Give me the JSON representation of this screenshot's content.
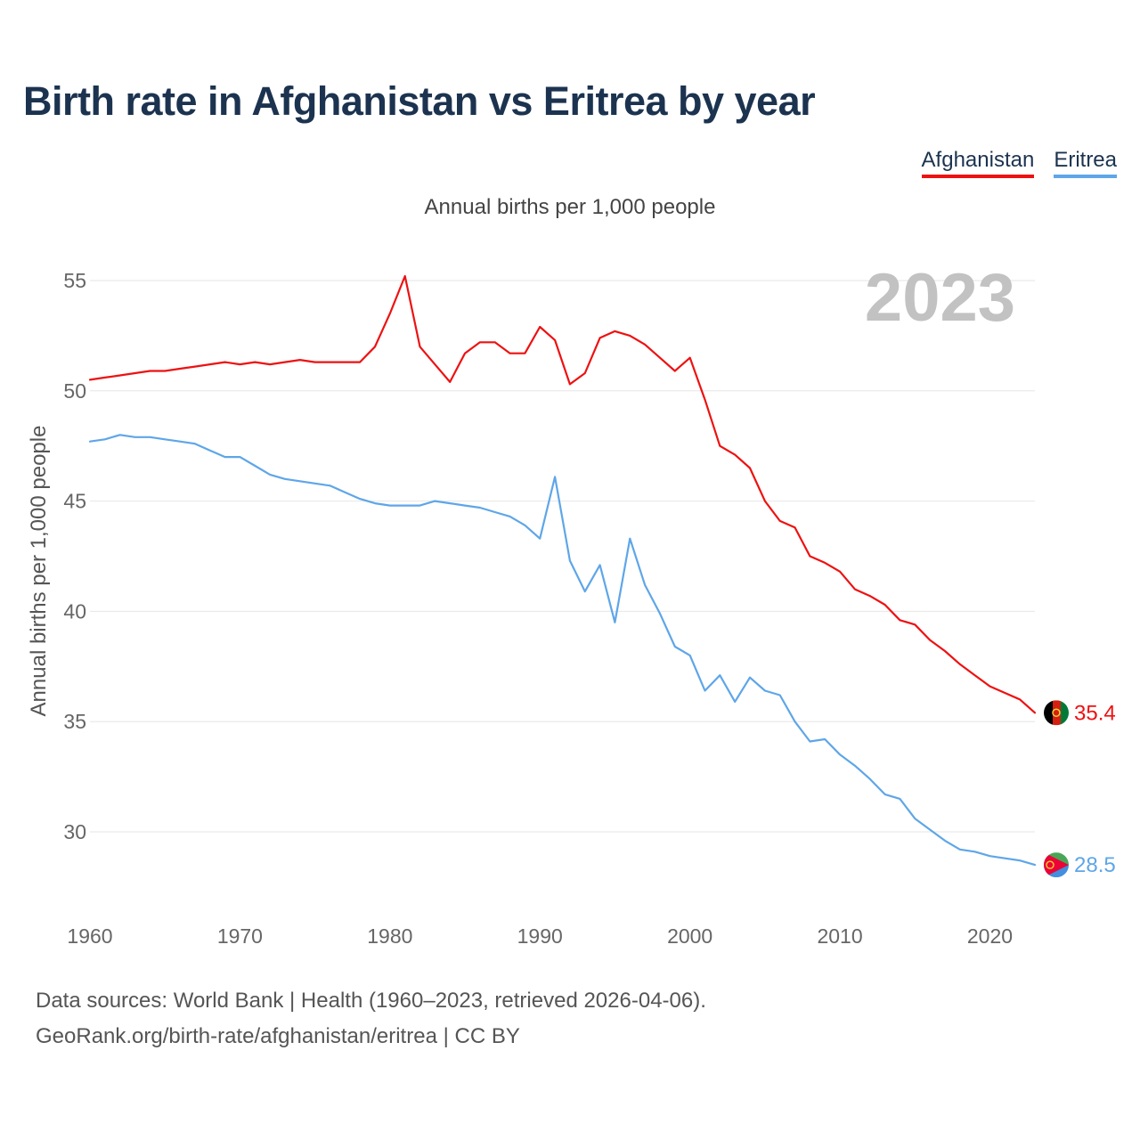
{
  "title": "Birth rate in Afghanistan vs Eritrea by year",
  "footer": {
    "line1": "Data sources: World Bank | Health (1960–2023, retrieved 2026-04-06).",
    "line2": "GeoRank.org/birth-rate/afghanistan/eritrea | CC BY"
  },
  "legend": [
    {
      "label": "Afghanistan",
      "color": "#ee1111"
    },
    {
      "label": "Eritrea",
      "color": "#5ea6e8"
    }
  ],
  "chart_data": {
    "type": "line",
    "title": "Birth rate in Afghanistan vs Eritrea by year",
    "subtitle": "Annual births per 1,000 people",
    "ylabel": "Annual births per 1,000 people",
    "xlabel": "",
    "year_label": "2023",
    "xlim": [
      1960,
      2023
    ],
    "ylim": [
      27,
      56
    ],
    "x_ticks": [
      1960,
      1970,
      1980,
      1990,
      2000,
      2010,
      2020
    ],
    "y_ticks": [
      30,
      35,
      40,
      45,
      50,
      55
    ],
    "grid": true,
    "x": [
      1960,
      1961,
      1962,
      1963,
      1964,
      1965,
      1966,
      1967,
      1968,
      1969,
      1970,
      1971,
      1972,
      1973,
      1974,
      1975,
      1976,
      1977,
      1978,
      1979,
      1980,
      1981,
      1982,
      1983,
      1984,
      1985,
      1986,
      1987,
      1988,
      1989,
      1990,
      1991,
      1992,
      1993,
      1994,
      1995,
      1996,
      1997,
      1998,
      1999,
      2000,
      2001,
      2002,
      2003,
      2004,
      2005,
      2006,
      2007,
      2008,
      2009,
      2010,
      2011,
      2012,
      2013,
      2014,
      2015,
      2016,
      2017,
      2018,
      2019,
      2020,
      2021,
      2022,
      2023
    ],
    "series": [
      {
        "name": "Afghanistan",
        "color": "#ee1111",
        "end_label": "35.4",
        "values": [
          50.5,
          50.6,
          50.7,
          50.8,
          50.9,
          50.9,
          51.0,
          51.1,
          51.2,
          51.3,
          51.2,
          51.3,
          51.2,
          51.3,
          51.4,
          51.3,
          51.3,
          51.3,
          51.3,
          52.0,
          53.5,
          55.2,
          52.0,
          51.2,
          50.4,
          51.7,
          52.2,
          52.2,
          51.7,
          51.7,
          52.9,
          52.3,
          50.3,
          50.8,
          52.4,
          52.7,
          52.5,
          52.1,
          51.5,
          50.9,
          51.5,
          49.6,
          47.5,
          47.1,
          46.5,
          45.0,
          44.1,
          43.8,
          42.5,
          42.2,
          41.8,
          41.0,
          40.7,
          40.3,
          39.6,
          39.4,
          38.7,
          38.2,
          37.6,
          37.1,
          36.6,
          36.3,
          36.0,
          35.4
        ]
      },
      {
        "name": "Eritrea",
        "color": "#5ea6e8",
        "end_label": "28.5",
        "values": [
          47.7,
          47.8,
          48.0,
          47.9,
          47.9,
          47.8,
          47.7,
          47.6,
          47.3,
          47.0,
          47.0,
          46.6,
          46.2,
          46.0,
          45.9,
          45.8,
          45.7,
          45.4,
          45.1,
          44.9,
          44.8,
          44.8,
          44.8,
          45.0,
          44.9,
          44.8,
          44.7,
          44.5,
          44.3,
          43.9,
          43.3,
          46.1,
          42.3,
          40.9,
          42.1,
          39.5,
          43.3,
          41.2,
          39.9,
          38.4,
          38.0,
          36.4,
          37.1,
          35.9,
          37.0,
          36.4,
          36.2,
          35.0,
          34.1,
          34.2,
          33.5,
          33.0,
          32.4,
          31.7,
          31.5,
          30.6,
          30.1,
          29.6,
          29.2,
          29.1,
          28.9,
          28.8,
          28.7,
          28.5
        ]
      }
    ]
  }
}
